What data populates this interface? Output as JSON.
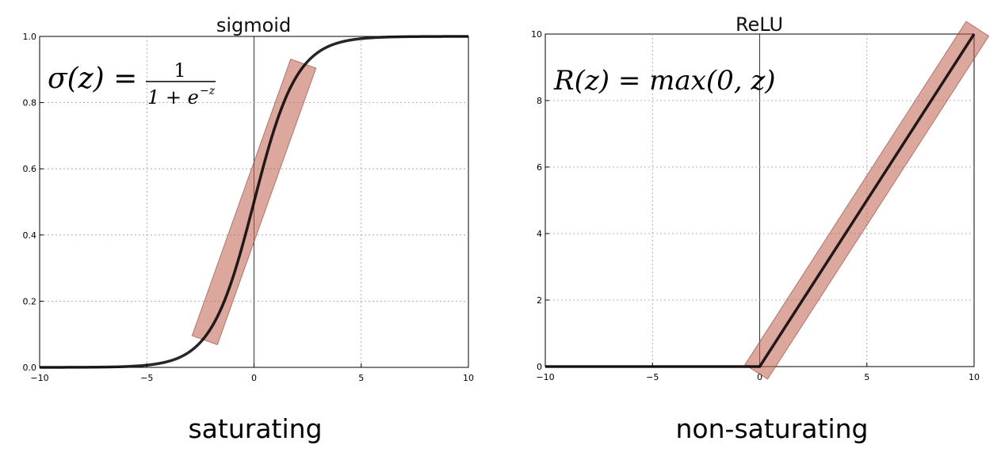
{
  "chart_data": [
    {
      "type": "line",
      "title": "sigmoid",
      "formula": {
        "lhs": "σ(z) =",
        "numerator": "1",
        "denominator": "1 + e",
        "exponent": "−z"
      },
      "caption": "saturating",
      "xlim": [
        -10,
        10
      ],
      "ylim": [
        0.0,
        1.0
      ],
      "xticks": [
        -10,
        -5,
        0,
        5,
        10
      ],
      "xtick_labels": [
        "−10",
        "−5",
        "0",
        "5",
        "10"
      ],
      "yticks": [
        0.0,
        0.2,
        0.4,
        0.6,
        0.8,
        1.0
      ],
      "ytick_labels": [
        "0.0",
        "0.2",
        "0.4",
        "0.6",
        "0.8",
        "1.0"
      ],
      "grid": true,
      "function": "sigmoid",
      "series": [
        {
          "x": [
            -10,
            -8,
            -6,
            -5,
            -4,
            -3,
            -2,
            -1,
            0,
            1,
            2,
            3,
            4,
            5,
            6,
            8,
            10
          ],
          "y": [
            4.54e-05,
            0.000335,
            0.00247,
            0.00669,
            0.018,
            0.0474,
            0.119,
            0.269,
            0.5,
            0.731,
            0.881,
            0.953,
            0.982,
            0.993,
            0.9975,
            0.99966,
            0.99995
          ]
        }
      ],
      "highlight": {
        "from": [
          -2.2,
          0.1
        ],
        "to": [
          2.2,
          0.9
        ],
        "color": "#c0604f",
        "opacity": 0.55
      }
    },
    {
      "type": "line",
      "title": "ReLU",
      "formula": {
        "text": "R(z) = max(0,  z)"
      },
      "caption": "non-saturating",
      "xlim": [
        -10,
        10
      ],
      "ylim": [
        0,
        10
      ],
      "xticks": [
        -10,
        -5,
        0,
        5,
        10
      ],
      "xtick_labels": [
        "−10",
        "−5",
        "0",
        "5",
        "10"
      ],
      "yticks": [
        0,
        2,
        4,
        6,
        8,
        10
      ],
      "ytick_labels": [
        "0",
        "2",
        "4",
        "6",
        "8",
        "10"
      ],
      "grid": true,
      "function": "relu",
      "series": [
        {
          "x": [
            -10,
            0,
            10
          ],
          "y": [
            0,
            0,
            10
          ]
        }
      ],
      "highlight": {
        "from": [
          0,
          0
        ],
        "to": [
          10,
          10
        ],
        "color": "#c0604f",
        "opacity": 0.55
      }
    }
  ]
}
